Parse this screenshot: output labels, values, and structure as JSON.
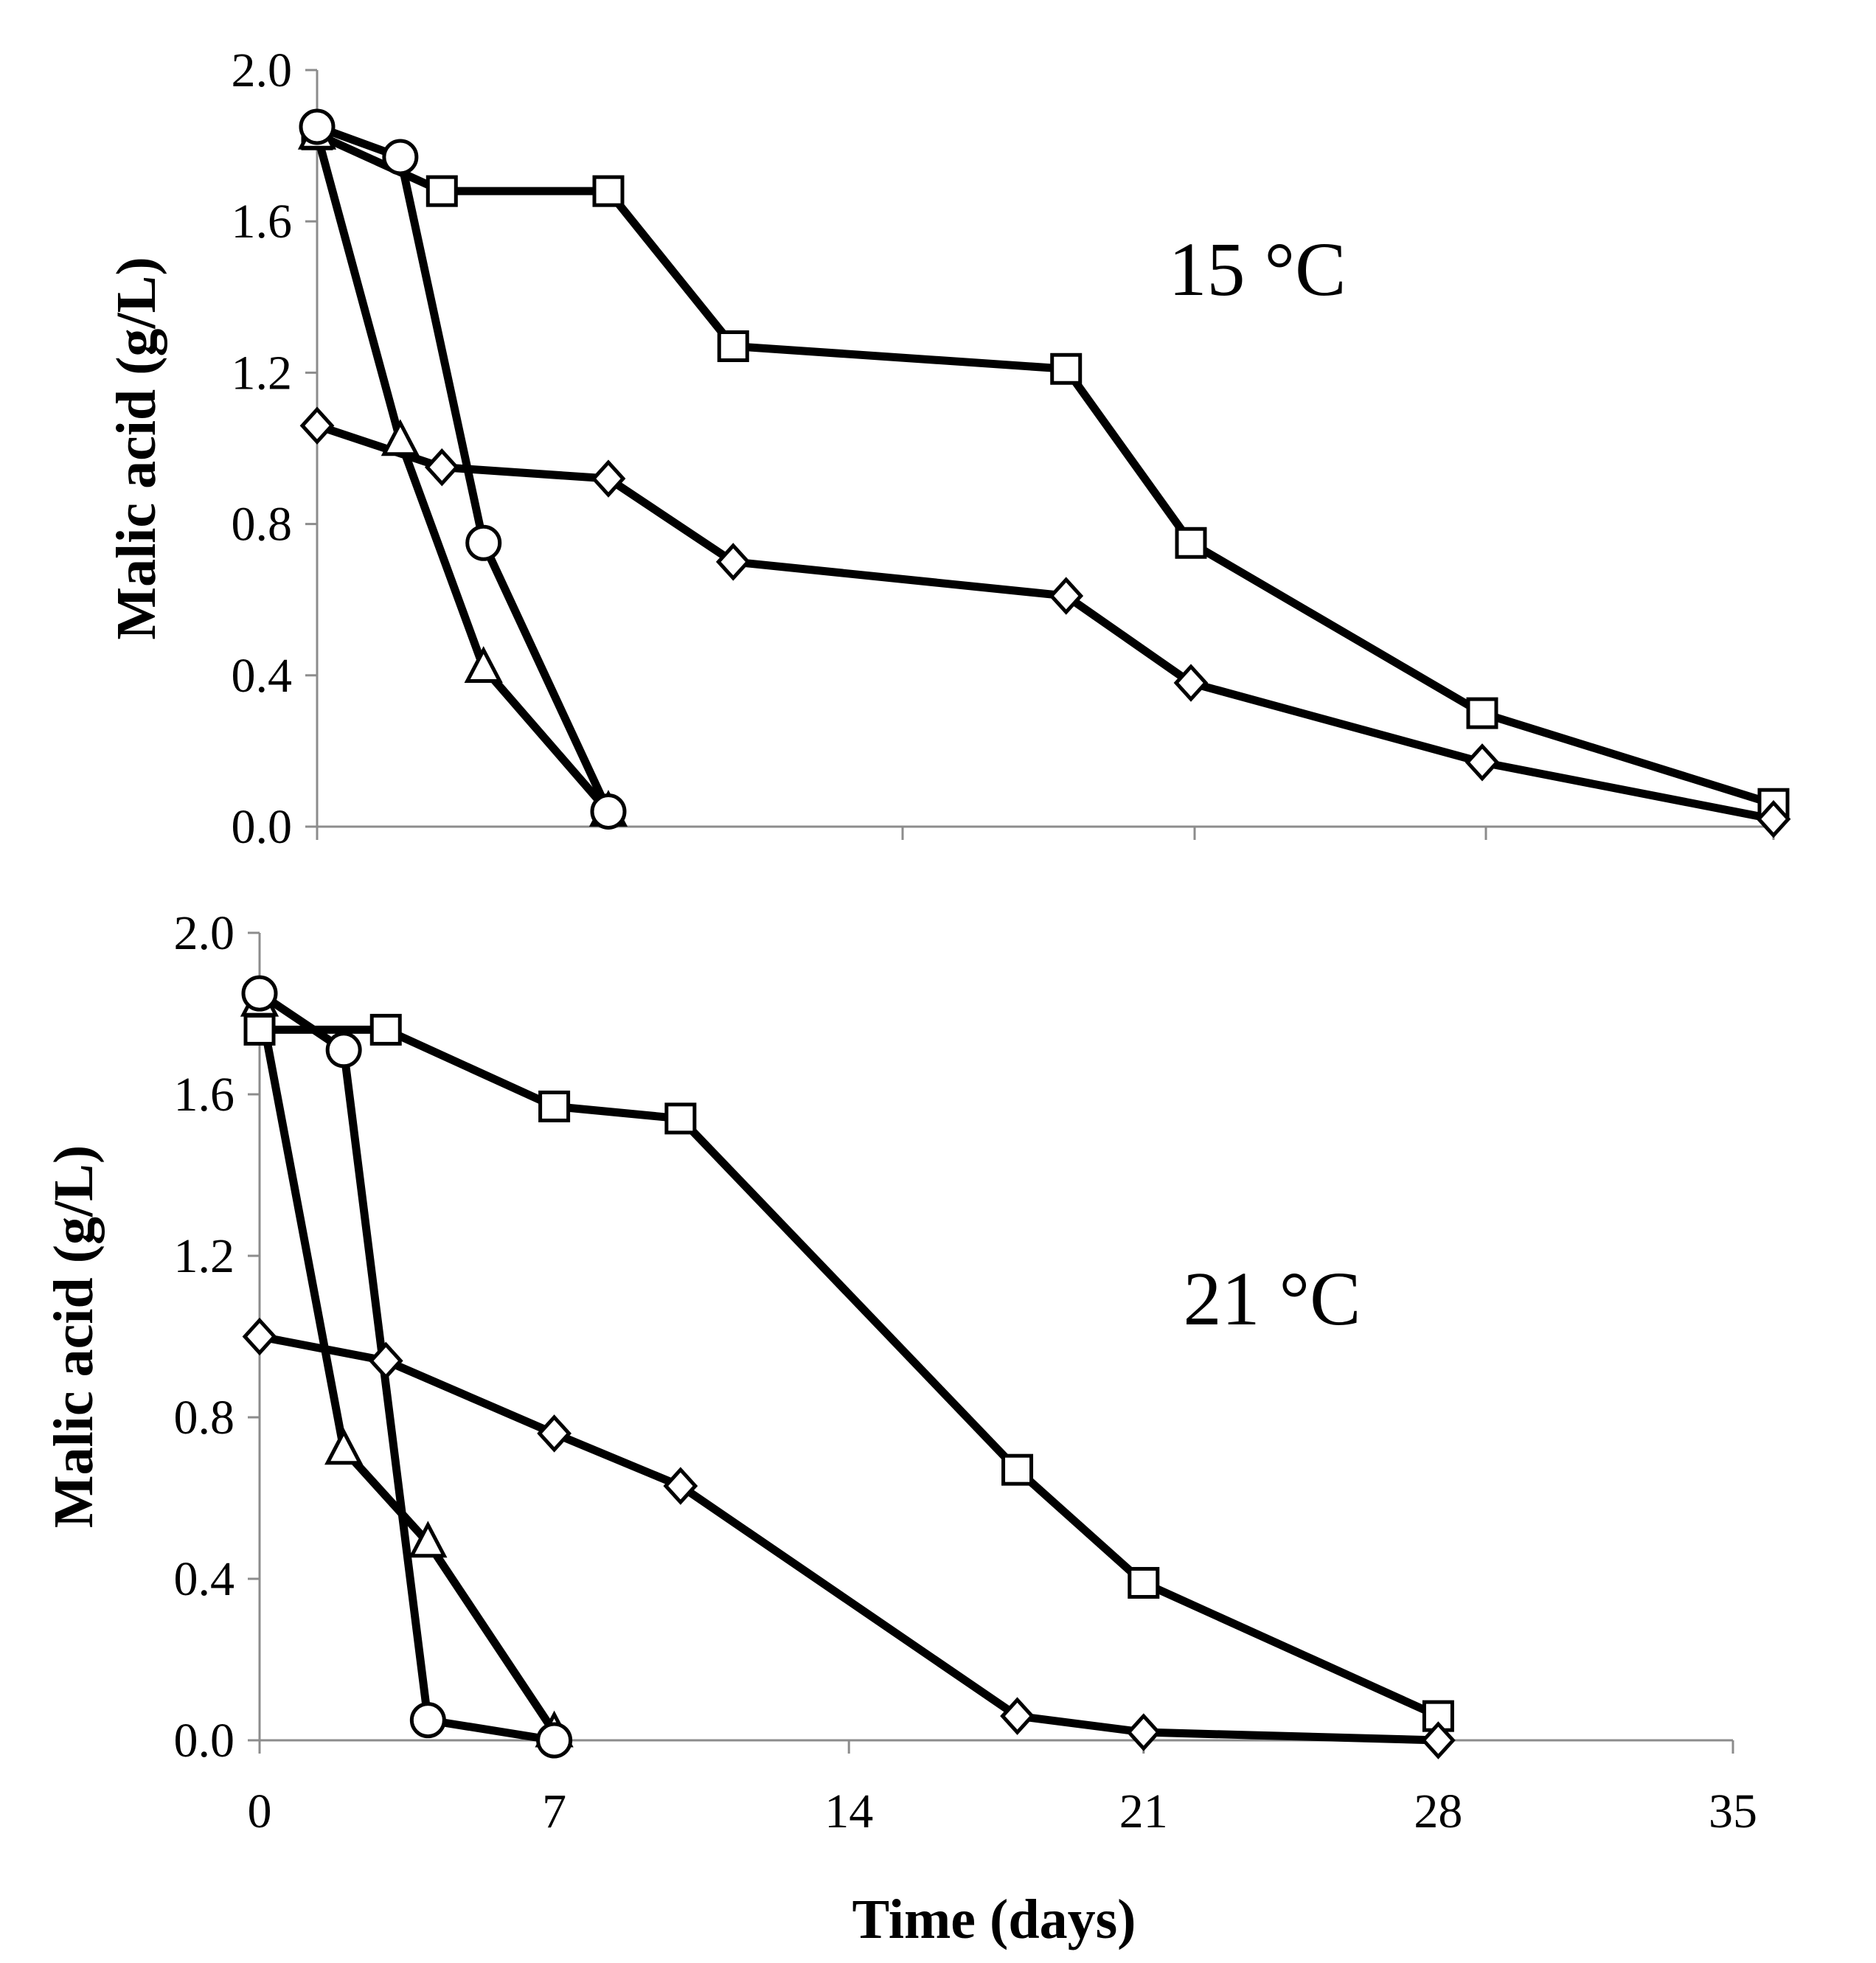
{
  "chart_data": [
    {
      "type": "line",
      "panel": "top",
      "annotation": "15  °C",
      "ylabel": "Malic acid (g/L)",
      "xlabel": "",
      "ylim": [
        0,
        2.0
      ],
      "xlim": [
        0,
        35
      ],
      "y_ticks": [
        "0.0",
        "0.4",
        "0.8",
        "1.2",
        "1.6",
        "2.0"
      ],
      "x_ticks": [],
      "series": [
        {
          "name": "square",
          "marker": "square",
          "x": [
            0,
            3,
            7,
            10,
            18,
            21,
            28,
            35
          ],
          "y": [
            1.83,
            1.68,
            1.68,
            1.27,
            1.21,
            0.75,
            0.3,
            0.06
          ]
        },
        {
          "name": "diamond",
          "marker": "diamond",
          "x": [
            0,
            3,
            7,
            10,
            18,
            21,
            28,
            35
          ],
          "y": [
            1.06,
            0.95,
            0.92,
            0.7,
            0.61,
            0.38,
            0.17,
            0.02
          ]
        },
        {
          "name": "triangle",
          "marker": "triangle",
          "x": [
            0,
            2,
            4,
            7
          ],
          "y": [
            1.83,
            1.02,
            0.42,
            0.04
          ]
        },
        {
          "name": "circle",
          "marker": "circle",
          "x": [
            0,
            2,
            4,
            7
          ],
          "y": [
            1.85,
            1.77,
            0.75,
            0.04
          ]
        }
      ]
    },
    {
      "type": "line",
      "panel": "bottom",
      "annotation": "21  °C",
      "ylabel": "Malic acid (g/L)",
      "xlabel": "Time (days)",
      "ylim": [
        0,
        2.0
      ],
      "xlim": [
        0,
        35
      ],
      "y_ticks": [
        "0.0",
        "0.4",
        "0.8",
        "1.2",
        "1.6",
        "2.0"
      ],
      "x_ticks": [
        "0",
        "7",
        "14",
        "21",
        "28",
        "35"
      ],
      "series": [
        {
          "name": "square",
          "marker": "square",
          "x": [
            0,
            3,
            7,
            10,
            18,
            21,
            28
          ],
          "y": [
            1.76,
            1.76,
            1.57,
            1.54,
            0.67,
            0.39,
            0.06
          ]
        },
        {
          "name": "diamond",
          "marker": "diamond",
          "x": [
            0,
            3,
            7,
            10,
            18,
            21,
            28
          ],
          "y": [
            1.0,
            0.94,
            0.76,
            0.63,
            0.06,
            0.02,
            0.0
          ]
        },
        {
          "name": "triangle",
          "marker": "triangle",
          "x": [
            0,
            2,
            4,
            7
          ],
          "y": [
            1.83,
            0.72,
            0.49,
            0.02
          ]
        },
        {
          "name": "circle",
          "marker": "circle",
          "x": [
            0,
            2,
            4,
            7
          ],
          "y": [
            1.85,
            1.71,
            0.05,
            0.0
          ]
        }
      ]
    }
  ]
}
